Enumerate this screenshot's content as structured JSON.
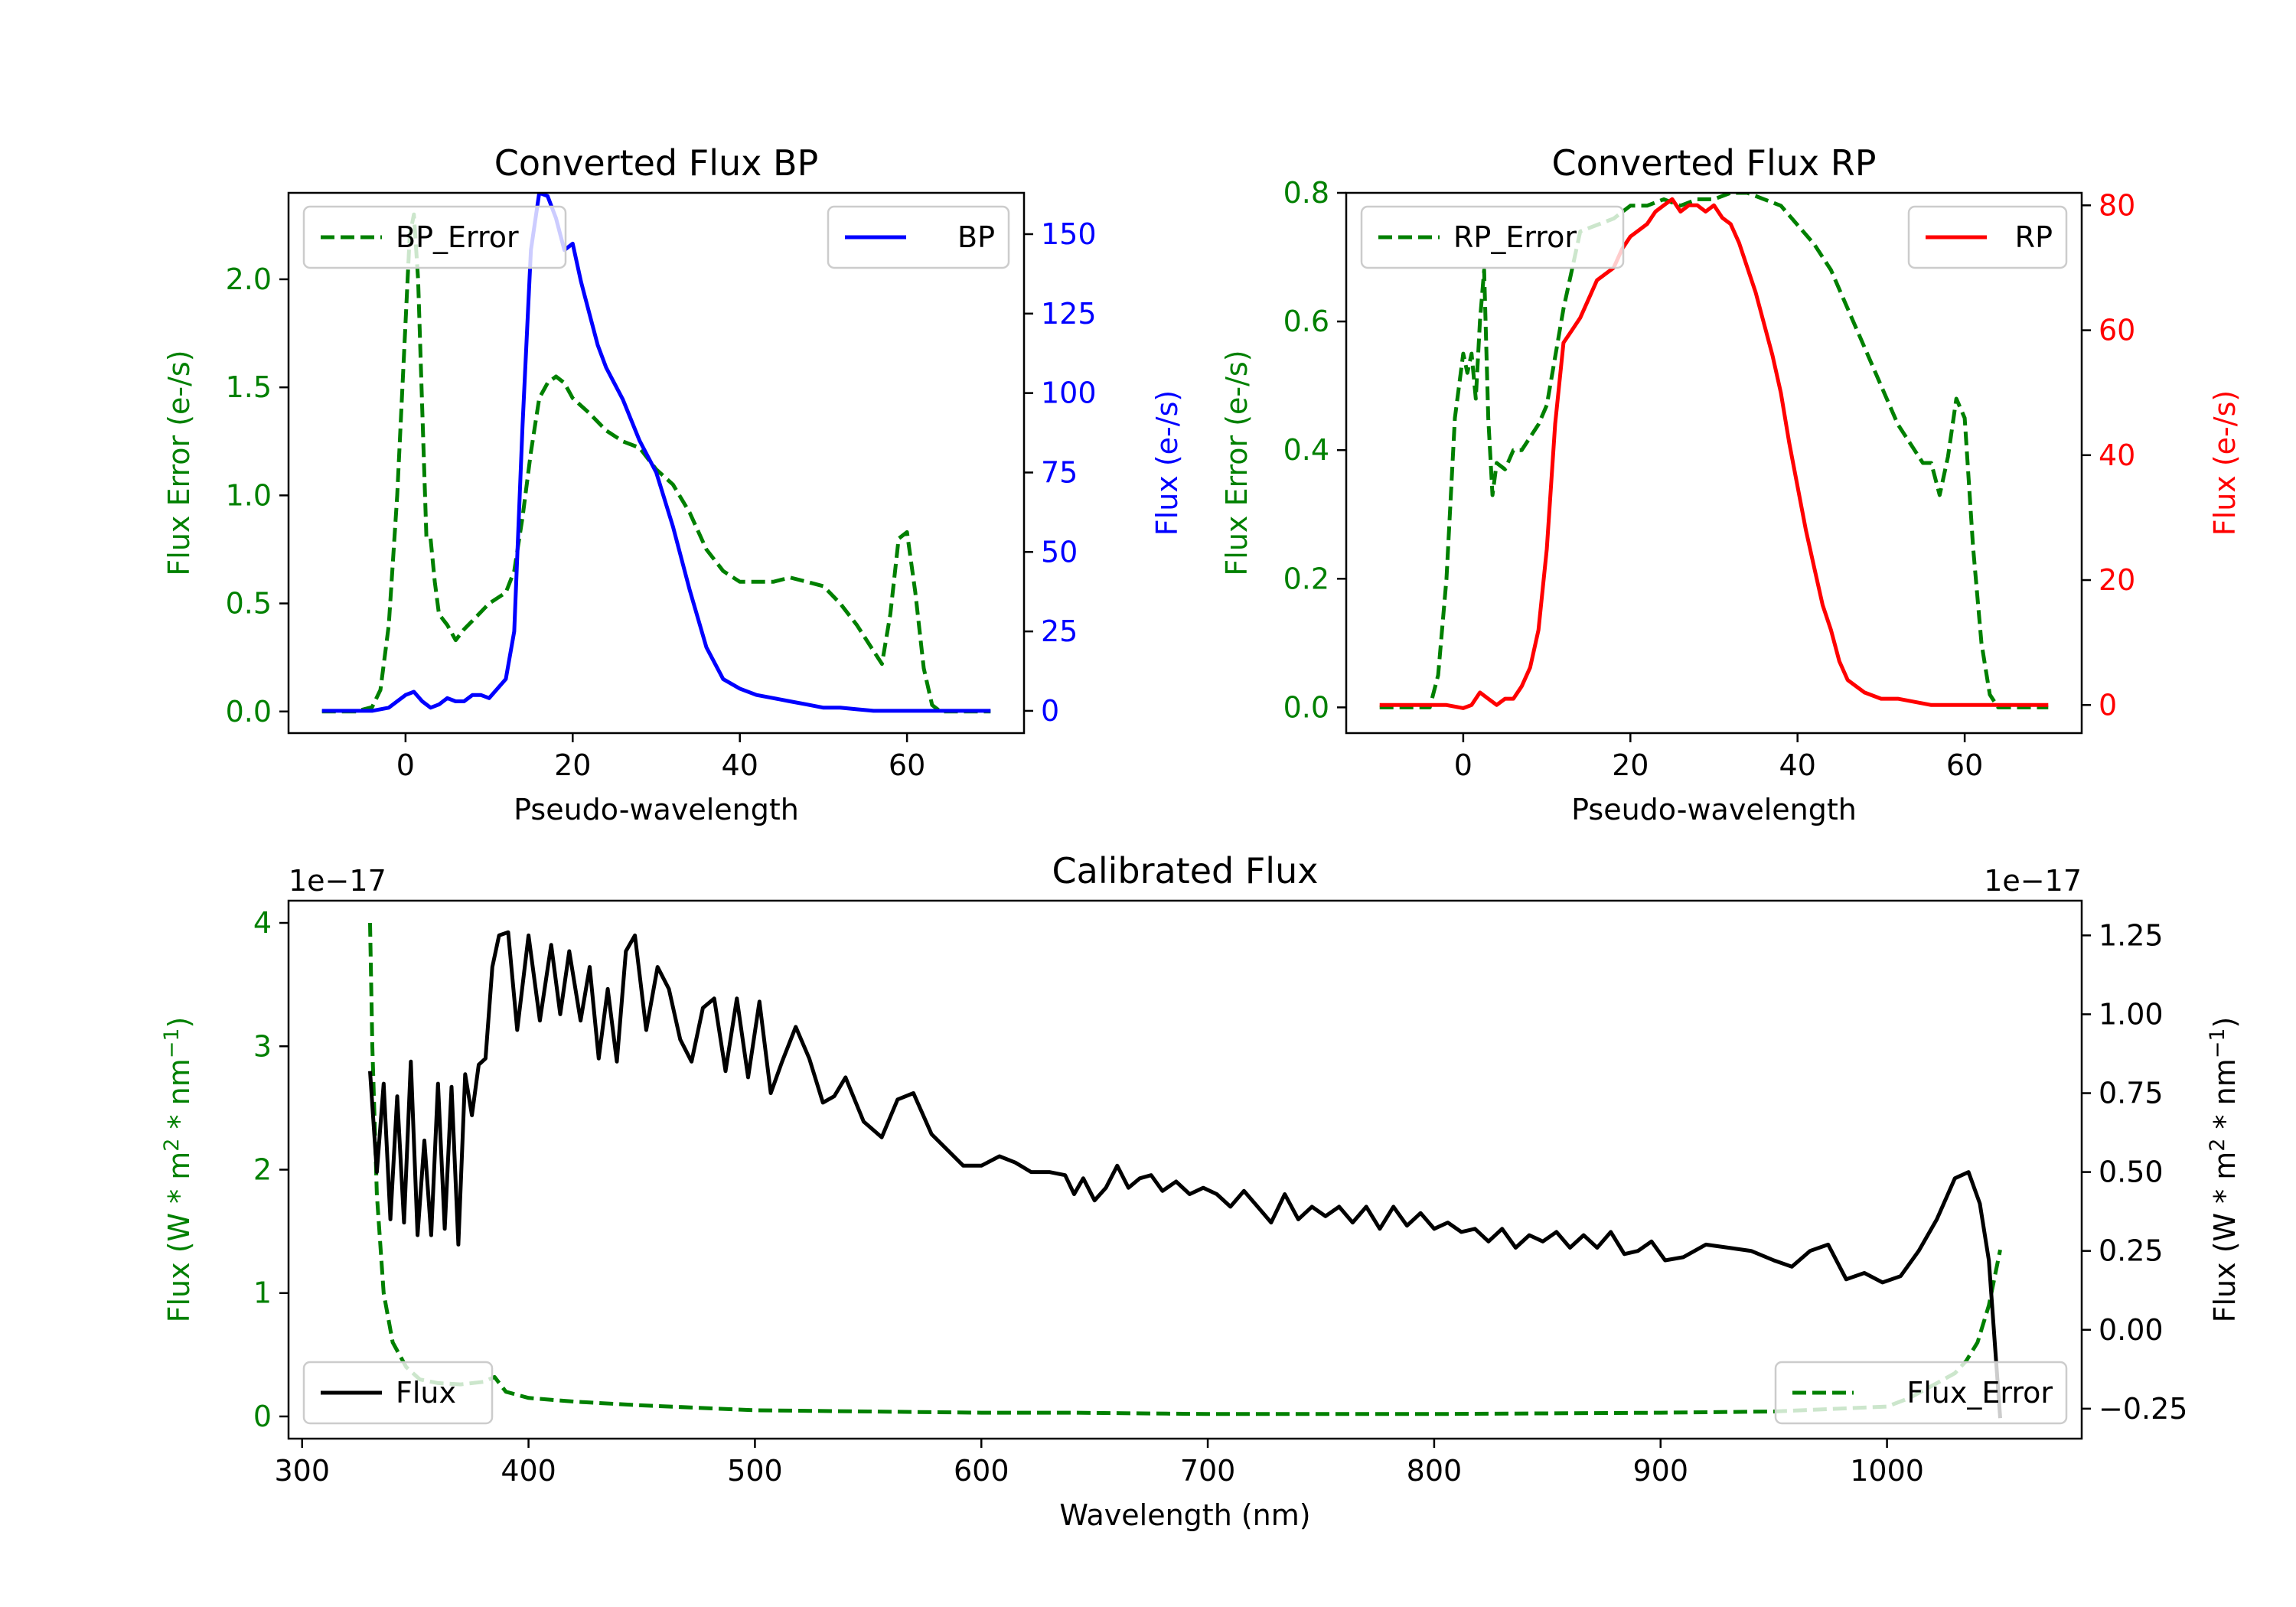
{
  "colors": {
    "green": "#008000",
    "blue": "#0000ff",
    "red": "#ff0000",
    "black": "#000000"
  },
  "chart_data": [
    {
      "type": "line",
      "title": "Converted Flux BP",
      "xlabel": "Pseudo-wavelength",
      "ylabel_left": "Flux Error (e-/s)",
      "ylabel_right": "Flux (e-/s)",
      "xlim": [
        -14,
        74
      ],
      "ylim_left": [
        -0.1,
        2.4
      ],
      "ylim_right": [
        -7,
        163
      ],
      "xticks": [
        0,
        20,
        40,
        60
      ],
      "yticks_left": [
        0.0,
        0.5,
        1.0,
        1.5,
        2.0
      ],
      "yticks_right": [
        0,
        25,
        50,
        75,
        100,
        125,
        150
      ],
      "ytick_labels_left": [
        "0.0",
        "0.5",
        "1.0",
        "1.5",
        "2.0"
      ],
      "ytick_labels_right": [
        "0",
        "25",
        "50",
        "75",
        "100",
        "125",
        "150"
      ],
      "legend_left": "BP_Error",
      "legend_right": "BP",
      "series": [
        {
          "name": "BP_Error",
          "axis": "left",
          "color": "#008000",
          "dash": true,
          "x": [
            -10,
            -6,
            -4,
            -3,
            -2,
            -1,
            0,
            0.5,
            1,
            1.5,
            2,
            2.5,
            3,
            3.5,
            4,
            5,
            6,
            7,
            8,
            10,
            12,
            13,
            14,
            15,
            16,
            17,
            18,
            19,
            20,
            22,
            24,
            26,
            28,
            30,
            32,
            34,
            36,
            38,
            40,
            42,
            44,
            46,
            48,
            50,
            52,
            54,
            56,
            57,
            58,
            59,
            60,
            61,
            62,
            63,
            64,
            66,
            70
          ],
          "y": [
            0,
            0,
            0.02,
            0.1,
            0.4,
            1.0,
            1.8,
            2.2,
            2.3,
            2.0,
            1.4,
            0.8,
            0.8,
            0.6,
            0.45,
            0.4,
            0.33,
            0.38,
            0.42,
            0.5,
            0.55,
            0.65,
            0.9,
            1.2,
            1.45,
            1.52,
            1.55,
            1.52,
            1.45,
            1.38,
            1.3,
            1.25,
            1.22,
            1.12,
            1.05,
            0.92,
            0.75,
            0.65,
            0.6,
            0.6,
            0.6,
            0.62,
            0.6,
            0.58,
            0.5,
            0.4,
            0.28,
            0.22,
            0.45,
            0.8,
            0.83,
            0.55,
            0.2,
            0.03,
            0,
            0,
            0
          ]
        },
        {
          "name": "BP",
          "axis": "right",
          "color": "#0000ff",
          "dash": false,
          "x": [
            -10,
            -4,
            -2,
            0,
            1,
            2,
            3,
            4,
            5,
            6,
            7,
            8,
            9,
            10,
            11,
            12,
            13,
            14,
            15,
            16,
            17,
            18,
            19,
            20,
            21,
            22,
            23,
            24,
            25,
            26,
            28,
            30,
            32,
            34,
            36,
            38,
            40,
            42,
            44,
            46,
            48,
            50,
            52,
            54,
            56,
            60,
            64,
            70
          ],
          "y": [
            0,
            0,
            1,
            5,
            6,
            3,
            1,
            2,
            4,
            3,
            3,
            5,
            5,
            4,
            7,
            10,
            25,
            90,
            145,
            163,
            162,
            155,
            145,
            147,
            135,
            125,
            115,
            108,
            103,
            98,
            85,
            75,
            58,
            38,
            20,
            10,
            7,
            5,
            4,
            3,
            2,
            1,
            1,
            0.5,
            0,
            0,
            0,
            0
          ]
        }
      ]
    },
    {
      "type": "line",
      "title": "Converted Flux RP",
      "xlabel": "Pseudo-wavelength",
      "ylabel_left": "Flux Error (e-/s)",
      "ylabel_right": "Flux (e-/s)",
      "xlim": [
        -14,
        74
      ],
      "ylim_left": [
        -0.04,
        0.8
      ],
      "ylim_right": [
        -4.5,
        82
      ],
      "xticks": [
        0,
        20,
        40,
        60
      ],
      "yticks_left": [
        0.0,
        0.2,
        0.4,
        0.6,
        0.8
      ],
      "yticks_right": [
        0,
        20,
        40,
        60,
        80
      ],
      "ytick_labels_left": [
        "0.0",
        "0.2",
        "0.4",
        "0.6",
        "0.8"
      ],
      "ytick_labels_right": [
        "0",
        "20",
        "40",
        "60",
        "80"
      ],
      "legend_left": "RP_Error",
      "legend_right": "RP",
      "series": [
        {
          "name": "RP_Error",
          "axis": "left",
          "color": "#008000",
          "dash": true,
          "x": [
            -10,
            -6,
            -4,
            -3,
            -2,
            -1,
            0,
            0.5,
            1,
            1.5,
            2,
            2.5,
            3,
            3.5,
            4,
            5,
            6,
            7,
            8,
            9,
            10,
            12,
            14,
            16,
            18,
            20,
            22,
            24,
            26,
            28,
            30,
            32,
            34,
            36,
            38,
            40,
            42,
            44,
            46,
            48,
            50,
            52,
            54,
            55,
            56,
            57,
            58,
            59,
            60,
            61,
            62,
            63,
            64,
            66,
            70
          ],
          "y": [
            0,
            0,
            0,
            0.05,
            0.2,
            0.45,
            0.55,
            0.52,
            0.55,
            0.48,
            0.6,
            0.68,
            0.45,
            0.33,
            0.38,
            0.37,
            0.4,
            0.4,
            0.42,
            0.44,
            0.47,
            0.62,
            0.74,
            0.75,
            0.76,
            0.78,
            0.78,
            0.79,
            0.78,
            0.79,
            0.79,
            0.8,
            0.8,
            0.79,
            0.78,
            0.75,
            0.72,
            0.68,
            0.62,
            0.56,
            0.5,
            0.44,
            0.4,
            0.38,
            0.38,
            0.33,
            0.39,
            0.48,
            0.45,
            0.25,
            0.1,
            0.02,
            0,
            0,
            0
          ]
        },
        {
          "name": "RP",
          "axis": "right",
          "color": "#ff0000",
          "dash": false,
          "x": [
            -10,
            -4,
            -2,
            0,
            1,
            2,
            3,
            4,
            5,
            6,
            7,
            8,
            9,
            10,
            11,
            12,
            13,
            14,
            15,
            16,
            17,
            18,
            19,
            20,
            21,
            22,
            23,
            24,
            25,
            26,
            27,
            28,
            29,
            30,
            31,
            32,
            33,
            34,
            35,
            36,
            37,
            38,
            39,
            40,
            41,
            42,
            43,
            44,
            45,
            46,
            48,
            50,
            52,
            54,
            56,
            58,
            60,
            62,
            64,
            70
          ],
          "y": [
            0,
            0,
            0,
            -0.5,
            0,
            2,
            1,
            0,
            1,
            1,
            3,
            6,
            12,
            25,
            45,
            58,
            60,
            62,
            65,
            68,
            69,
            70,
            73,
            75,
            76,
            77,
            79,
            80,
            81,
            79,
            80,
            80,
            79,
            80,
            78,
            77,
            74,
            70,
            66,
            61,
            56,
            50,
            42,
            35,
            28,
            22,
            16,
            12,
            7,
            4,
            2,
            1,
            1,
            0.5,
            0,
            0,
            0,
            0,
            0,
            0
          ]
        }
      ]
    },
    {
      "type": "line",
      "title": "Calibrated Flux",
      "xlabel": "Wavelength (nm)",
      "ylabel_left": "Flux (W * m2 * nm-1)",
      "ylabel_right": "Flux (W * m2 * nm-1)",
      "offset_left": "1e−17",
      "offset_right": "1e−17",
      "xlim": [
        294,
        1086
      ],
      "ylim_left": [
        -0.18,
        4.18
      ],
      "ylim_right": [
        -0.345,
        1.36
      ],
      "xticks": [
        300,
        400,
        500,
        600,
        700,
        800,
        900,
        1000
      ],
      "yticks_left": [
        0,
        1,
        2,
        3,
        4
      ],
      "yticks_right": [
        -0.25,
        0.0,
        0.25,
        0.5,
        0.75,
        1.0,
        1.25
      ],
      "ytick_labels_left": [
        "0",
        "1",
        "2",
        "3",
        "4"
      ],
      "ytick_labels_right": [
        "−0.25",
        "0.00",
        "0.25",
        "0.50",
        "0.75",
        "1.00",
        "1.25"
      ],
      "legend_left": "Flux",
      "legend_right": "Flux_Error",
      "series": [
        {
          "name": "Flux_Error",
          "axis": "left",
          "color": "#008000",
          "dash": true,
          "x": [
            330,
            331,
            333,
            336,
            340,
            346,
            352,
            360,
            370,
            380,
            385,
            390,
            400,
            420,
            450,
            500,
            550,
            600,
            640,
            700,
            800,
            900,
            950,
            1000,
            1010,
            1020,
            1030,
            1035,
            1040,
            1045,
            1050
          ],
          "y": [
            4.0,
            3.0,
            1.8,
            1.0,
            0.6,
            0.4,
            0.3,
            0.27,
            0.26,
            0.28,
            0.32,
            0.2,
            0.15,
            0.12,
            0.09,
            0.05,
            0.04,
            0.03,
            0.03,
            0.02,
            0.02,
            0.03,
            0.04,
            0.08,
            0.15,
            0.25,
            0.35,
            0.45,
            0.6,
            0.9,
            1.35
          ]
        },
        {
          "name": "Flux",
          "axis": "right",
          "color": "#000000",
          "dash": false,
          "x": [
            330,
            333,
            336,
            339,
            342,
            345,
            348,
            351,
            354,
            357,
            360,
            363,
            366,
            369,
            372,
            375,
            378,
            381,
            384,
            387,
            391,
            395,
            400,
            405,
            410,
            414,
            418,
            423,
            427,
            431,
            435,
            439,
            443,
            447,
            452,
            457,
            462,
            467,
            472,
            477,
            482,
            487,
            492,
            497,
            502,
            507,
            512,
            518,
            524,
            530,
            535,
            540,
            548,
            556,
            563,
            570,
            578,
            585,
            592,
            600,
            608,
            615,
            622,
            630,
            637,
            641,
            645,
            650,
            655,
            660,
            665,
            670,
            675,
            680,
            686,
            692,
            698,
            704,
            710,
            716,
            722,
            728,
            734,
            740,
            746,
            752,
            758,
            764,
            770,
            776,
            782,
            788,
            794,
            800,
            806,
            812,
            818,
            824,
            830,
            836,
            842,
            848,
            854,
            860,
            866,
            872,
            878,
            884,
            890,
            896,
            902,
            910,
            920,
            930,
            940,
            950,
            958,
            966,
            974,
            982,
            990,
            998,
            1006,
            1014,
            1022,
            1030,
            1036,
            1041,
            1045,
            1050
          ],
          "y": [
            0.82,
            0.5,
            0.78,
            0.35,
            0.74,
            0.34,
            0.85,
            0.3,
            0.6,
            0.3,
            0.78,
            0.32,
            0.77,
            0.27,
            0.81,
            0.68,
            0.84,
            0.86,
            1.15,
            1.25,
            1.26,
            0.95,
            1.25,
            0.98,
            1.22,
            1.0,
            1.2,
            0.98,
            1.15,
            0.86,
            1.08,
            0.85,
            1.2,
            1.25,
            0.95,
            1.15,
            1.08,
            0.92,
            0.85,
            1.02,
            1.05,
            0.82,
            1.05,
            0.8,
            1.04,
            0.75,
            0.85,
            0.96,
            0.86,
            0.72,
            0.74,
            0.8,
            0.66,
            0.61,
            0.73,
            0.75,
            0.62,
            0.57,
            0.52,
            0.52,
            0.55,
            0.53,
            0.5,
            0.5,
            0.49,
            0.43,
            0.48,
            0.41,
            0.45,
            0.52,
            0.45,
            0.48,
            0.49,
            0.44,
            0.47,
            0.43,
            0.45,
            0.43,
            0.39,
            0.44,
            0.39,
            0.34,
            0.43,
            0.35,
            0.39,
            0.36,
            0.39,
            0.34,
            0.39,
            0.32,
            0.39,
            0.33,
            0.37,
            0.32,
            0.34,
            0.31,
            0.32,
            0.28,
            0.32,
            0.26,
            0.3,
            0.28,
            0.31,
            0.26,
            0.3,
            0.26,
            0.31,
            0.24,
            0.25,
            0.28,
            0.22,
            0.23,
            0.27,
            0.26,
            0.25,
            0.22,
            0.2,
            0.25,
            0.27,
            0.16,
            0.18,
            0.15,
            0.17,
            0.25,
            0.35,
            0.48,
            0.5,
            0.4,
            0.22,
            -0.28
          ]
        }
      ]
    }
  ]
}
